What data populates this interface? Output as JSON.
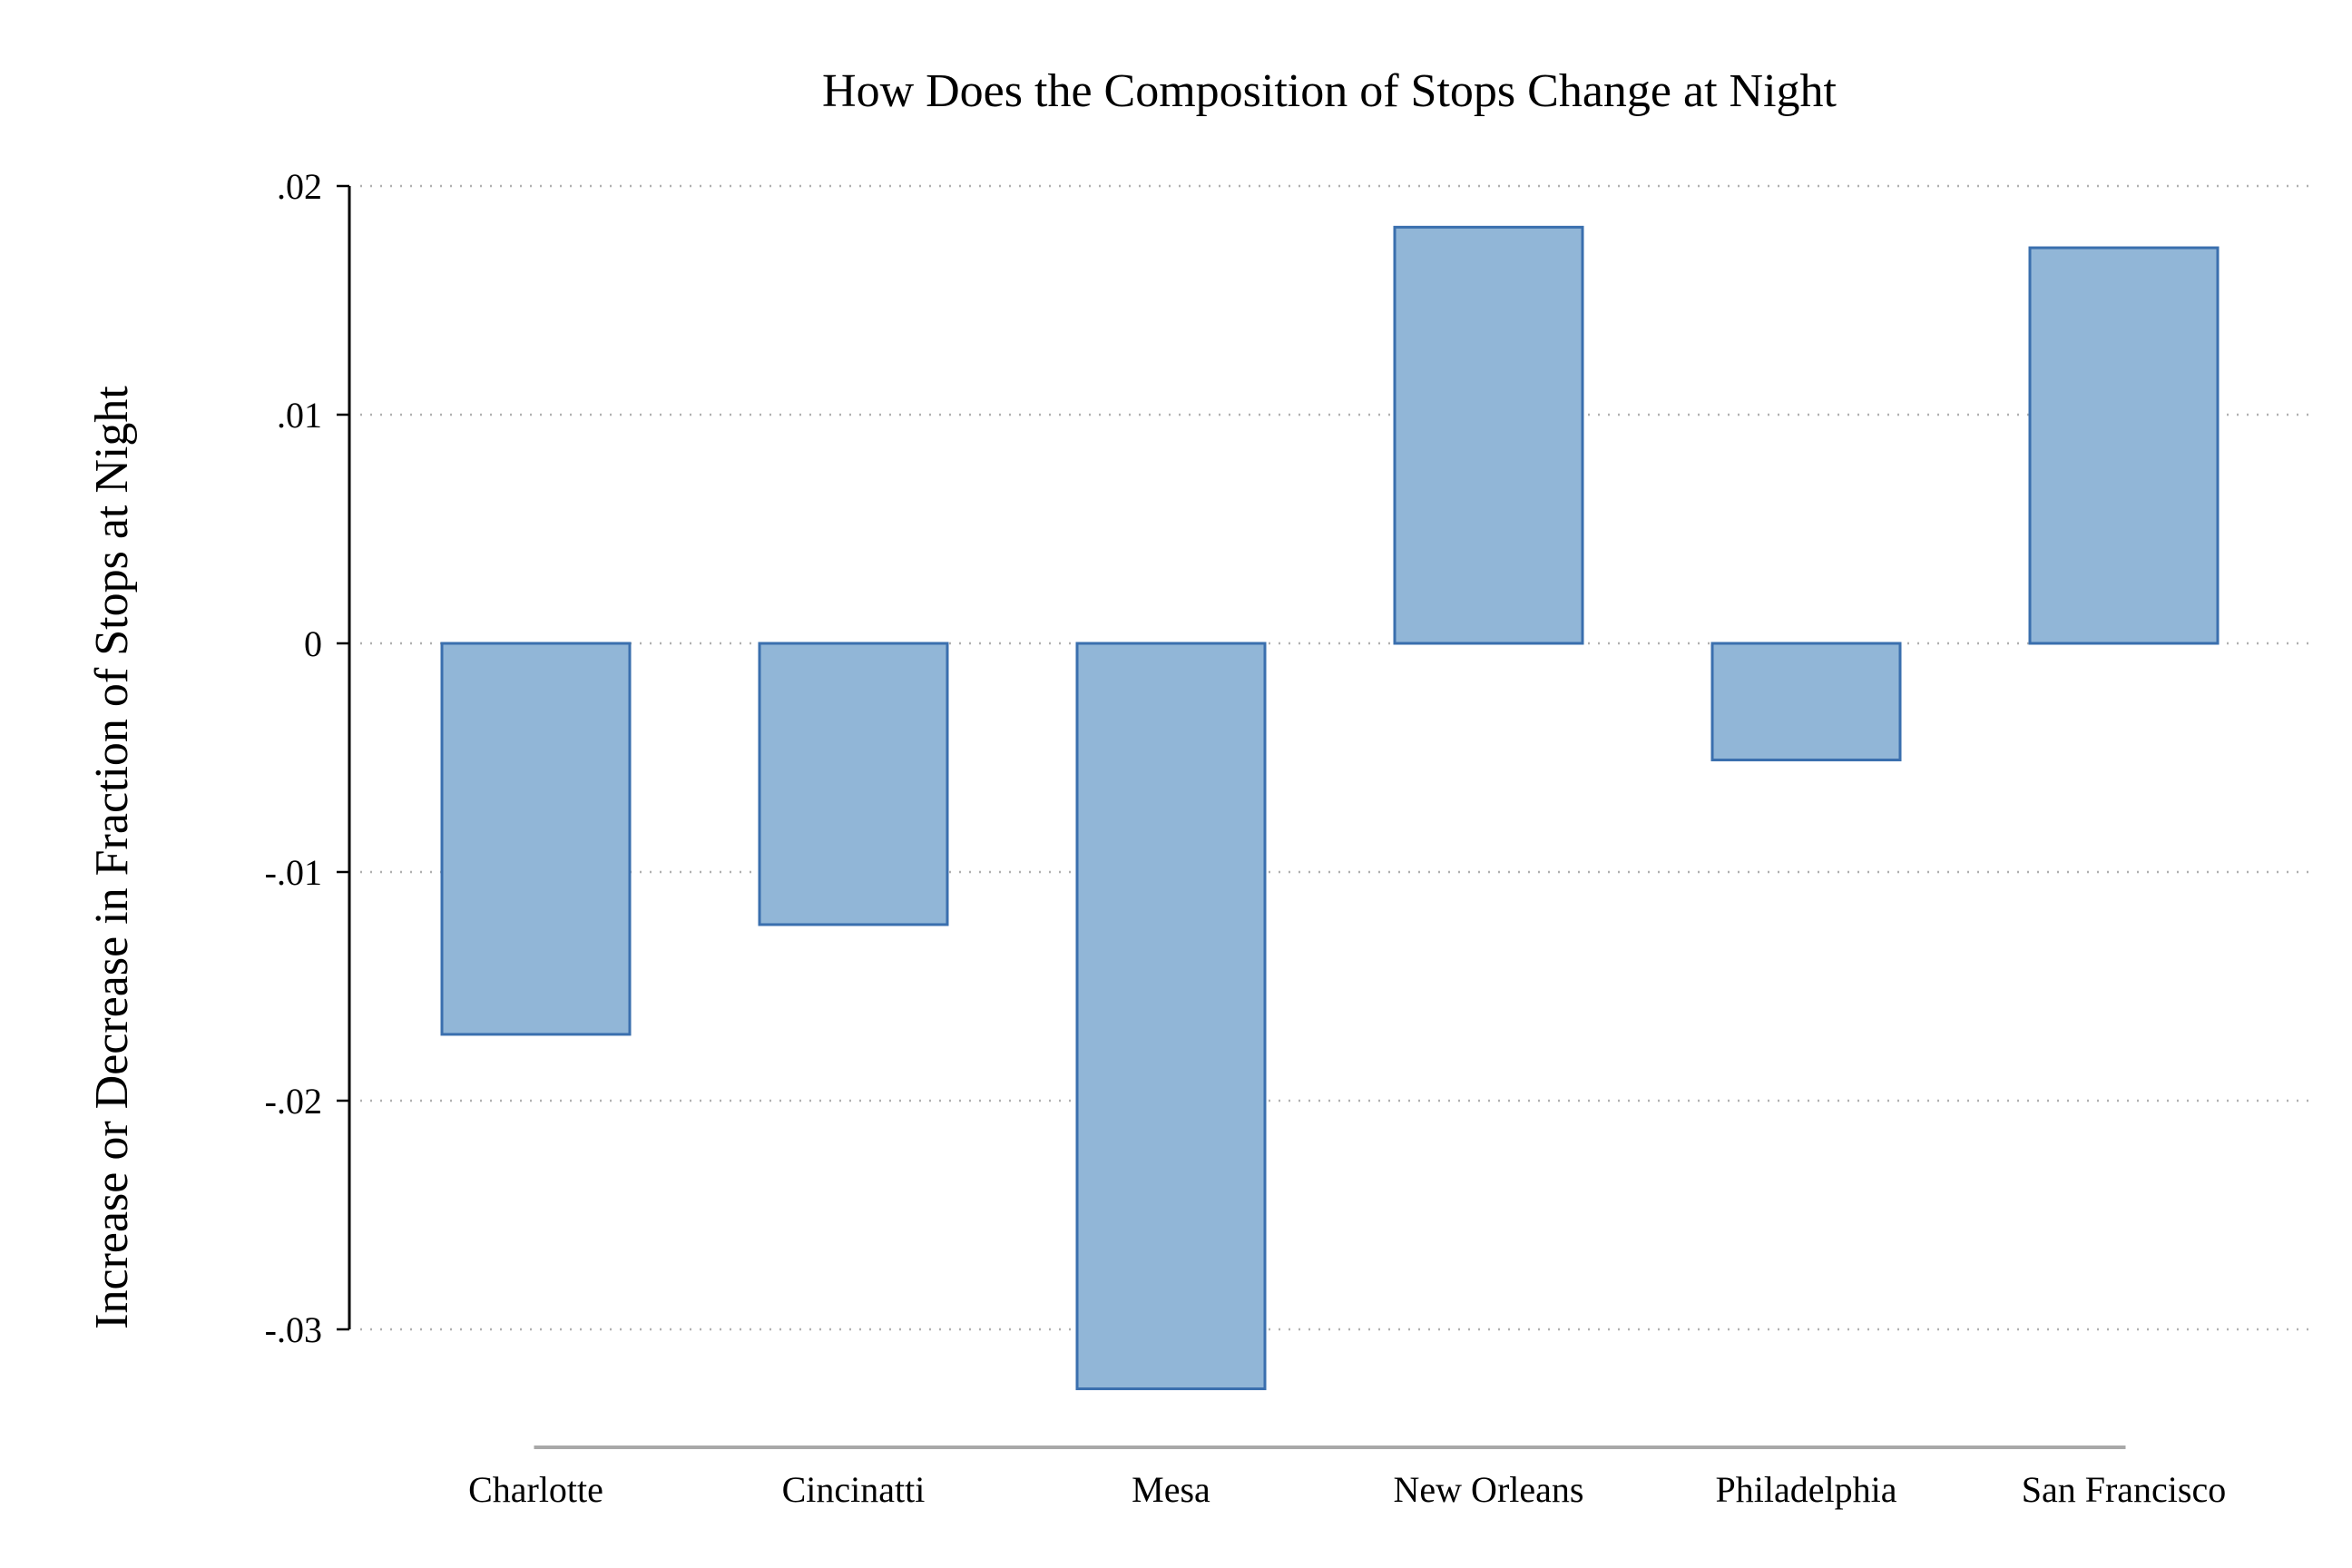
{
  "chart_data": {
    "type": "bar",
    "title": "How Does the Composition of Stops Change at Night",
    "xlabel": "",
    "ylabel": "Increase or Decrease in Fraction of Stops at Night",
    "categories": [
      "Charlotte",
      "Cincinatti",
      "Mesa",
      "New Orleans",
      "Philadelphia",
      "San Francisco"
    ],
    "values": [
      -0.0171,
      -0.0123,
      -0.0326,
      0.0182,
      -0.0051,
      0.0173
    ],
    "ylim": [
      -0.03,
      0.02
    ],
    "yticks": [
      0.02,
      0.01,
      0,
      -0.01,
      -0.02,
      -0.03
    ],
    "ytick_labels": [
      ".02",
      ".01",
      "0",
      "-.01",
      "-.02",
      "-.03"
    ],
    "grid": true,
    "grid_style": "dotted",
    "bar_fill": "#91b6d7",
    "bar_stroke": "#3a6fae",
    "axis_color": "#000000",
    "grid_color": "#b0b0b0",
    "baseline_color": "#a8a8a8"
  }
}
